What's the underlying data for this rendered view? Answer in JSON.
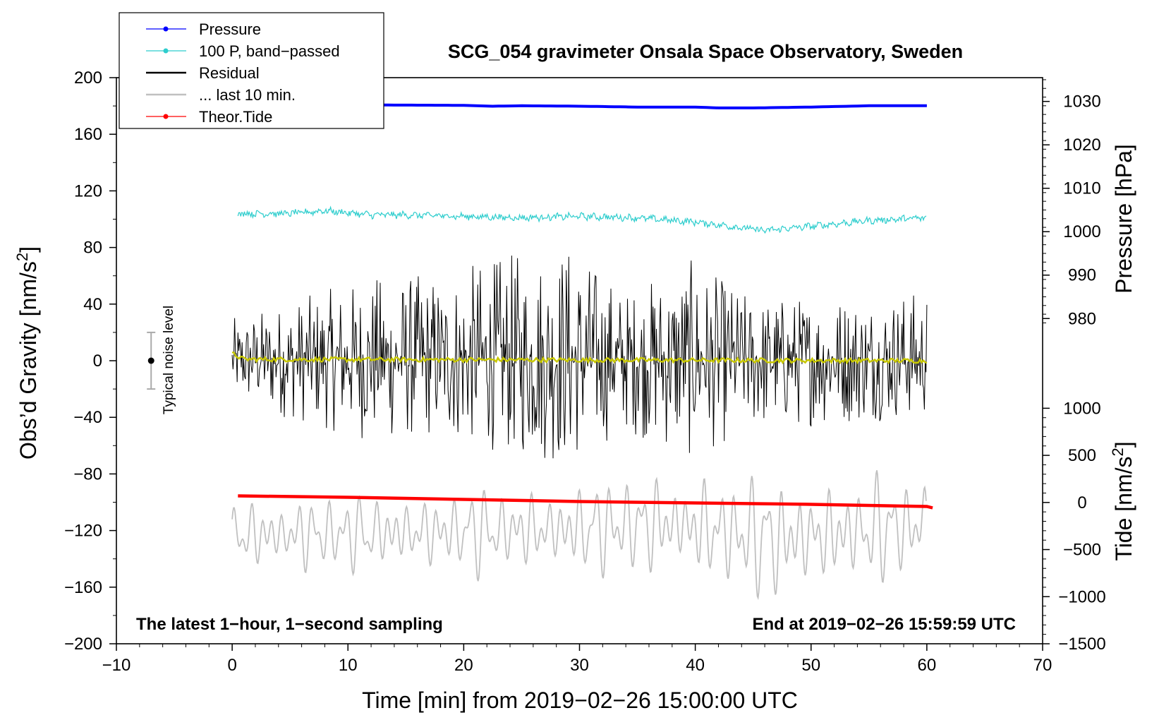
{
  "chart_data": {
    "type": "line",
    "title": "SCG_054 gravimeter Onsala Space Observatory, Sweden",
    "xlabel": "Time [min] from 2019−02−26 15:00:00 UTC",
    "ylabel": "Obs’d Gravity [nm/s",
    "ylabel_sup": "2",
    "ylabel_close": "]",
    "y2label_pressure": "Pressure [hPa]",
    "y2label_tide": "Tide [nm/s",
    "y2label_tide_sup": "2",
    "y2label_tide_close": "]",
    "xlim": [
      -10,
      70
    ],
    "ylim": [
      -200,
      200
    ],
    "xticks": [
      -10,
      0,
      10,
      20,
      30,
      40,
      50,
      60,
      70
    ],
    "xtick_labels": [
      "−10",
      "0",
      "10",
      "20",
      "30",
      "40",
      "50",
      "60",
      "70"
    ],
    "yticks": [
      200,
      160,
      120,
      80,
      40,
      0,
      -40,
      -80,
      -120,
      -160,
      -200
    ],
    "ytick_labels": [
      "200",
      "160",
      "120",
      "80",
      "40",
      "0",
      "−40",
      "−80",
      "−120",
      "−160",
      "−200"
    ],
    "pressure_axis": {
      "ticks": [
        1030,
        1020,
        1010,
        1000,
        990,
        980
      ],
      "tick_labels": [
        "1030",
        "1020",
        "1010",
        "1000",
        "990",
        "980"
      ],
      "ylim_at_gravity": [
        {
          "hpa": 1030,
          "g": 183.2
        },
        {
          "hpa": 980,
          "g": 29.8
        }
      ]
    },
    "tide_axis": {
      "ticks": [
        1000,
        500,
        0,
        -500,
        -1000,
        -1500
      ],
      "tick_labels": [
        "1000",
        "500",
        "0",
        "−500",
        "−1000",
        "−1500"
      ],
      "ylim_at_gravity": [
        {
          "tide": 1000,
          "g": -33.6
        },
        {
          "tide": -1500,
          "g": -200
        }
      ]
    },
    "series": [
      {
        "name": "Pressure",
        "color": "#0000ff",
        "unit": "hPa",
        "x": [
          0.5,
          10,
          20,
          22.5,
          25,
          30,
          35,
          40,
          42,
          45,
          50,
          55,
          60
        ],
        "values": [
          1029.2,
          1029.2,
          1029.1,
          1028.9,
          1029.0,
          1028.9,
          1028.7,
          1028.7,
          1028.5,
          1028.5,
          1028.7,
          1029.0,
          1029.0
        ]
      },
      {
        "name": "100 P, band−passed",
        "color": "#2dcdcd",
        "unit": "nm/s2",
        "x": [
          0.5,
          5,
          8,
          12,
          15,
          20,
          25,
          30,
          35,
          40,
          43,
          46,
          50,
          55,
          60
        ],
        "values": [
          104,
          104,
          106,
          103,
          103,
          102,
          101,
          102,
          101,
          98,
          95,
          92,
          95,
          99,
          101
        ]
      },
      {
        "name": "Residual",
        "color": "#000000",
        "unit": "nm/s2",
        "x": [
          0,
          12,
          17.5,
          28.8,
          34,
          39.5,
          45,
          60
        ],
        "envelope_min": [
          -30,
          -58,
          -55,
          -75,
          -50,
          -70,
          -50,
          -40
        ],
        "envelope_max": [
          30,
          60,
          62,
          86,
          50,
          72,
          45,
          50
        ]
      },
      {
        "name": "... last 10 min.",
        "color": "#c0c0c0",
        "unit": "nm/s2",
        "x": [
          0,
          15,
          30,
          38,
          46.5,
          60
        ],
        "envelope_min": [
          -155,
          -155,
          -158,
          -160,
          -178,
          -158
        ],
        "envelope_max": [
          -92,
          -88,
          -80,
          -70,
          -75,
          -75
        ]
      },
      {
        "name": "Theor.Tide",
        "color": "#ff0000",
        "unit": "nm/s2",
        "x": [
          0.5,
          10,
          20,
          30,
          40,
          50,
          60,
          60.5
        ],
        "values": [
          -95.5,
          -96.5,
          -98,
          -99.5,
          -100.5,
          -101.5,
          -103,
          -104
        ]
      },
      {
        "name": "smoothed",
        "color": "#c8c800",
        "unit": "nm/s2",
        "x": [
          0,
          1,
          60
        ],
        "values": [
          5,
          1,
          0
        ]
      }
    ]
  },
  "legend": {
    "items": [
      "Pressure",
      "100 P, band−passed",
      "Residual",
      "... last 10 min.",
      "Theor.Tide"
    ],
    "colors": [
      "#0000ff",
      "#2dcdcd",
      "#000000",
      "#c0c0c0",
      "#ff0000"
    ]
  },
  "annotations": {
    "left_note": "The latest 1−hour, 1−second sampling",
    "right_note": "End at 2019−02−26 15:59:59 UTC",
    "noise_label": "Typical noise level",
    "noise_level": {
      "x": -7,
      "center": 0,
      "half_range": 20
    }
  }
}
